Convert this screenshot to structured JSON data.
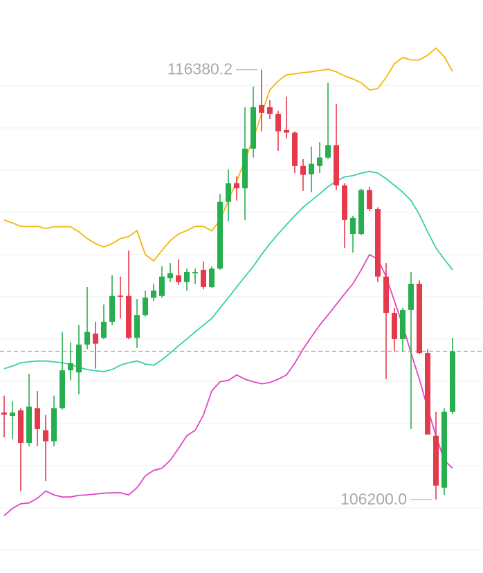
{
  "chart_data": {
    "type": "candlestick",
    "ylim": [
      104460,
      118030
    ],
    "yticks": [
      105000,
      106000,
      107000,
      108000,
      109000,
      110000,
      111000,
      112000,
      113000,
      114000,
      115000,
      116000
    ],
    "grid": true,
    "up_color": "#27ae4f",
    "down_color": "#e5394c",
    "max_label": "116380.2",
    "min_label": "106200.0",
    "open": [
      108260,
      108180,
      108310,
      107540,
      108360,
      107840,
      107580,
      108360,
      109260,
      109210,
      109870,
      110130,
      110030,
      110410,
      111030,
      111020,
      110030,
      110570,
      110980,
      111020,
      111440,
      111510,
      111350,
      111560,
      111640,
      111230,
      111670,
      113250,
      113690,
      113570,
      114510,
      115540,
      115490,
      115330,
      114950,
      114890,
      114100,
      113900,
      114100,
      114300,
      114590,
      113640,
      112490,
      112490,
      113530,
      113080,
      111480,
      110620,
      110000,
      110690,
      111310,
      109670,
      107710,
      106480,
      108280
    ],
    "high": [
      108660,
      108530,
      108360,
      109180,
      108770,
      108200,
      108660,
      110170,
      109920,
      110330,
      111230,
      110410,
      110820,
      111510,
      111480,
      112100,
      110950,
      111150,
      111310,
      111720,
      111800,
      111890,
      111670,
      111670,
      111840,
      111720,
      113440,
      114020,
      113850,
      115490,
      115980,
      116380.2,
      115660,
      115410,
      115740,
      114920,
      114260,
      114560,
      114670,
      116070,
      115570,
      113690,
      112920,
      113560,
      113610,
      113120,
      111800,
      110740,
      110740,
      111590,
      111390,
      109760,
      108280,
      108360,
      110030
    ],
    "low": [
      107670,
      107630,
      106400,
      107460,
      107460,
      106640,
      107460,
      108330,
      109020,
      108690,
      109760,
      109300,
      110000,
      110330,
      110490,
      110000,
      109790,
      110530,
      110900,
      110980,
      111350,
      111280,
      111150,
      111310,
      111180,
      111210,
      111640,
      112790,
      113280,
      112820,
      114300,
      114920,
      115210,
      114460,
      114750,
      113930,
      113510,
      113480,
      113930,
      114260,
      113530,
      112160,
      112050,
      112460,
      113030,
      111350,
      109050,
      109710,
      109710,
      107870,
      109640,
      107740,
      106200.0,
      106310,
      108230
    ],
    "close": [
      108210,
      108260,
      107540,
      108400,
      107870,
      107580,
      108360,
      109260,
      109430,
      109870,
      110170,
      109890,
      110410,
      111020,
      111000,
      110030,
      110570,
      110980,
      111150,
      111480,
      111560,
      111350,
      111590,
      111590,
      111230,
      111670,
      113250,
      113690,
      113570,
      114510,
      115490,
      115360,
      115330,
      114920,
      114890,
      114100,
      113890,
      114150,
      114300,
      114590,
      113640,
      112820,
      112870,
      113530,
      113080,
      111480,
      110620,
      110000,
      110690,
      111310,
      109670,
      107740,
      106530,
      108280,
      109710
    ],
    "bands": [
      {
        "color": "#f2b705",
        "values": [
          112820,
          112750,
          112670,
          112660,
          112670,
          112620,
          112660,
          112660,
          112660,
          112540,
          112380,
          112260,
          112180,
          112260,
          112380,
          112430,
          112570,
          112000,
          111850,
          112100,
          112330,
          112490,
          112570,
          112670,
          112670,
          112560,
          112820,
          113280,
          113740,
          114230,
          114750,
          115330,
          115900,
          116110,
          116260,
          116280,
          116310,
          116330,
          116360,
          116390,
          116330,
          116230,
          116160,
          116070,
          115900,
          115930,
          116200,
          116520,
          116670,
          116610,
          116610,
          116720,
          116890,
          116690,
          116340
        ]
      },
      {
        "color": "#35d0a8",
        "values": [
          109300,
          109360,
          109440,
          109460,
          109480,
          109480,
          109460,
          109440,
          109400,
          109330,
          109280,
          109250,
          109230,
          109280,
          109380,
          109440,
          109480,
          109410,
          109380,
          109510,
          109670,
          109840,
          110000,
          110170,
          110330,
          110490,
          110740,
          110980,
          111230,
          111480,
          111720,
          112000,
          112260,
          112490,
          112710,
          112920,
          113120,
          113280,
          113440,
          113610,
          113740,
          113840,
          113870,
          113930,
          113970,
          113930,
          113800,
          113640,
          113480,
          113280,
          112950,
          112540,
          112160,
          111890,
          111640
        ]
      },
      {
        "color": "#e046c4",
        "values": [
          105820,
          105990,
          106100,
          106120,
          106230,
          106400,
          106310,
          106260,
          106260,
          106300,
          106310,
          106330,
          106350,
          106360,
          106360,
          106310,
          106480,
          106760,
          106890,
          106940,
          107130,
          107410,
          107710,
          107840,
          108200,
          108770,
          108990,
          109020,
          109150,
          109050,
          108990,
          108940,
          108970,
          109050,
          109150,
          109430,
          109760,
          110050,
          110330,
          110570,
          110820,
          111070,
          111310,
          111640,
          112000,
          111890,
          111480,
          110900,
          110330,
          109670,
          109050,
          108360,
          107710,
          107130,
          106940
        ]
      }
    ]
  }
}
